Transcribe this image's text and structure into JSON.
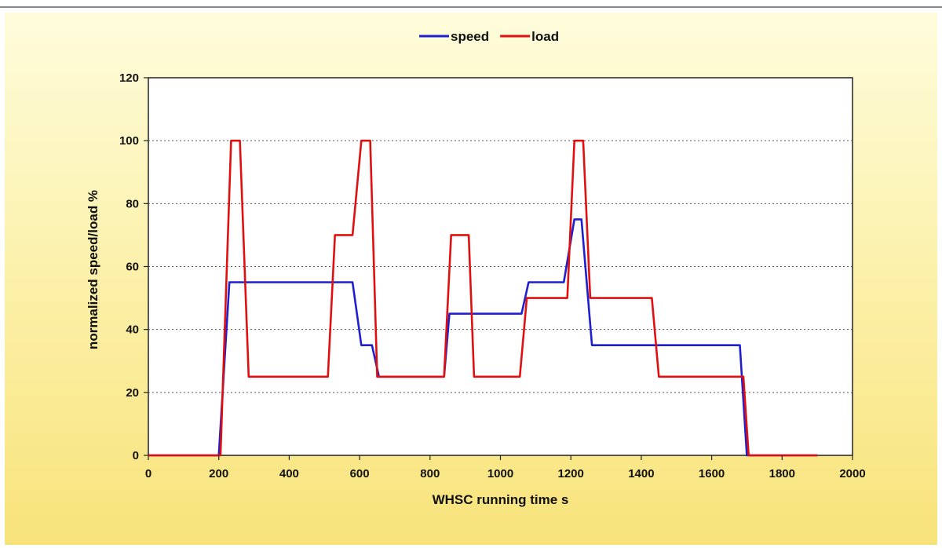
{
  "chart_data": {
    "type": "line",
    "title": "",
    "xlabel": "WHSC running time s",
    "ylabel": "normalized speed/load %",
    "xlim": [
      0,
      2000
    ],
    "ylim": [
      0,
      120
    ],
    "x_ticks": [
      0,
      200,
      400,
      600,
      800,
      1000,
      1200,
      1400,
      1600,
      1800,
      2000
    ],
    "y_ticks": [
      0,
      20,
      40,
      60,
      80,
      100,
      120
    ],
    "grid": "horizontal dotted",
    "legend_position": "top-center",
    "series": [
      {
        "name": "speed",
        "color": "#1f1fd0",
        "points": [
          [
            0,
            0
          ],
          [
            200,
            0
          ],
          [
            230,
            55
          ],
          [
            580,
            55
          ],
          [
            605,
            35
          ],
          [
            635,
            35
          ],
          [
            655,
            25
          ],
          [
            840,
            25
          ],
          [
            855,
            45
          ],
          [
            1060,
            45
          ],
          [
            1080,
            55
          ],
          [
            1180,
            55
          ],
          [
            1210,
            75
          ],
          [
            1230,
            75
          ],
          [
            1260,
            35
          ],
          [
            1680,
            35
          ],
          [
            1700,
            0
          ],
          [
            1900,
            0
          ]
        ]
      },
      {
        "name": "load",
        "color": "#e01010",
        "points": [
          [
            0,
            0
          ],
          [
            205,
            0
          ],
          [
            235,
            100
          ],
          [
            260,
            100
          ],
          [
            285,
            25
          ],
          [
            510,
            25
          ],
          [
            530,
            70
          ],
          [
            580,
            70
          ],
          [
            605,
            100
          ],
          [
            630,
            100
          ],
          [
            650,
            25
          ],
          [
            840,
            25
          ],
          [
            860,
            70
          ],
          [
            910,
            70
          ],
          [
            925,
            25
          ],
          [
            1055,
            25
          ],
          [
            1075,
            50
          ],
          [
            1190,
            50
          ],
          [
            1210,
            100
          ],
          [
            1235,
            100
          ],
          [
            1255,
            50
          ],
          [
            1430,
            50
          ],
          [
            1450,
            25
          ],
          [
            1690,
            25
          ],
          [
            1705,
            0
          ],
          [
            1900,
            0
          ]
        ]
      }
    ]
  }
}
